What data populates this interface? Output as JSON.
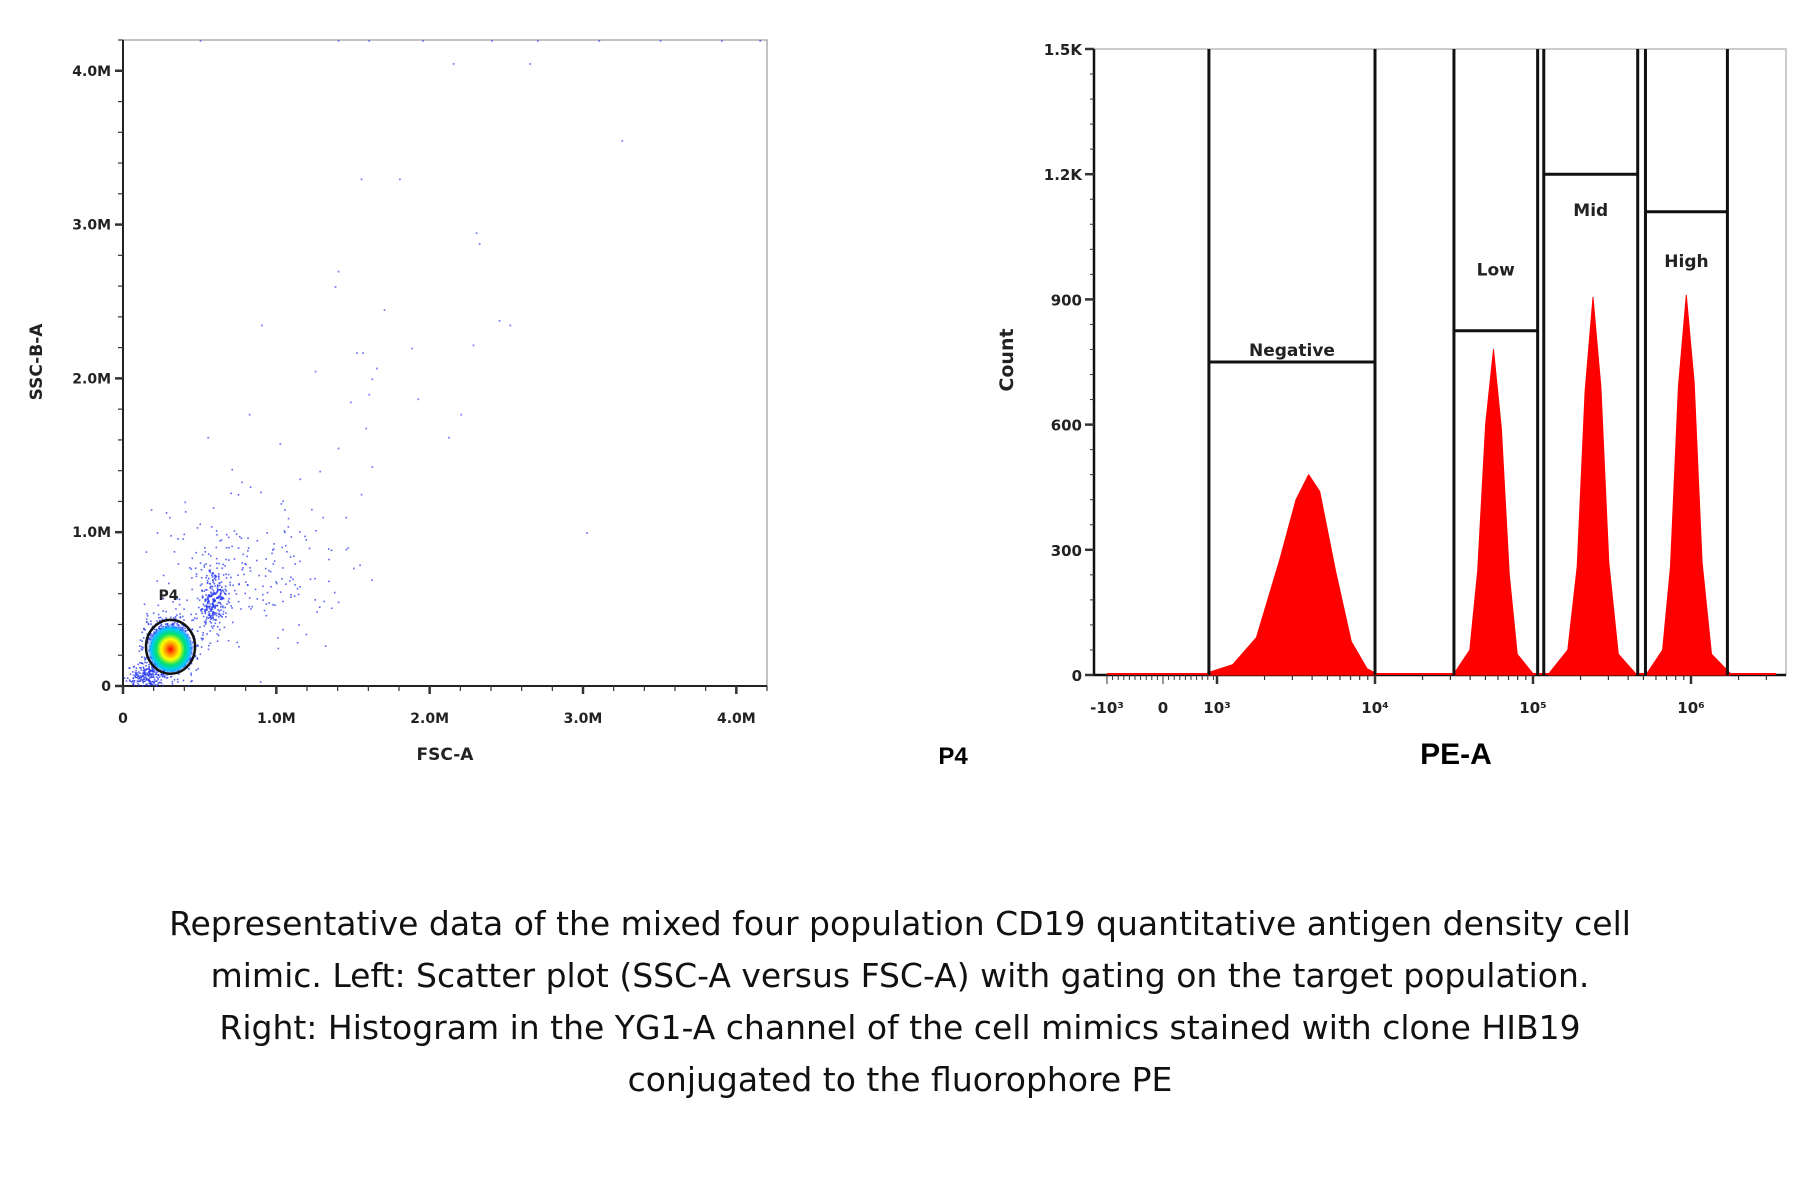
{
  "chart_data": [
    {
      "type": "scatter",
      "xlabel": "FSC-A",
      "ylabel": "SSC-B-A",
      "xlim": [
        0,
        4200000
      ],
      "ylim": [
        0,
        4200000
      ],
      "x_ticks": [
        {
          "value": 0,
          "label": "0"
        },
        {
          "value": 1000000,
          "label": "1.0M"
        },
        {
          "value": 2000000,
          "label": "2.0M"
        },
        {
          "value": 3000000,
          "label": "3.0M"
        },
        {
          "value": 4000000,
          "label": "4.0M"
        }
      ],
      "y_ticks": [
        {
          "value": 0,
          "label": "0"
        },
        {
          "value": 1000000,
          "label": "1.0M"
        },
        {
          "value": 2000000,
          "label": "2.0M"
        },
        {
          "value": 3000000,
          "label": "3.0M"
        },
        {
          "value": 4000000,
          "label": "4.0M"
        }
      ],
      "grid": false,
      "point_color": "#2233ee",
      "density_colors": [
        "#0000ff",
        "#00c8ff",
        "#00e060",
        "#ffff00",
        "#ff0000"
      ],
      "clusters": [
        {
          "center": [
            300000,
            260000
          ],
          "spread": [
            80000,
            95000
          ],
          "count": 900
        },
        {
          "center": [
            580000,
            560000
          ],
          "spread": [
            40000,
            100000
          ],
          "count": 260
        },
        {
          "center": [
            800000,
            760000
          ],
          "spread": [
            280000,
            230000
          ],
          "count": 220
        },
        {
          "center": [
            150000,
            70000
          ],
          "spread": [
            60000,
            40000
          ],
          "count": 200
        }
      ],
      "outliers": [
        [
          1550000,
          3300000
        ],
        [
          1800000,
          3300000
        ],
        [
          3250000,
          3550000
        ],
        [
          2300000,
          2950000
        ],
        [
          2320000,
          2880000
        ],
        [
          1400000,
          2700000
        ],
        [
          1380000,
          2600000
        ],
        [
          1700000,
          2450000
        ],
        [
          2450000,
          2380000
        ],
        [
          2520000,
          2350000
        ],
        [
          900000,
          2350000
        ],
        [
          2280000,
          2220000
        ],
        [
          1520000,
          2170000
        ],
        [
          1560000,
          2170000
        ],
        [
          1880000,
          2200000
        ],
        [
          1250000,
          2050000
        ],
        [
          1650000,
          2070000
        ],
        [
          1620000,
          2000000
        ],
        [
          1600000,
          1900000
        ],
        [
          1480000,
          1850000
        ],
        [
          1920000,
          1870000
        ],
        [
          820000,
          1770000
        ],
        [
          2200000,
          1770000
        ],
        [
          1580000,
          1680000
        ],
        [
          550000,
          1620000
        ],
        [
          1020000,
          1580000
        ],
        [
          2120000,
          1620000
        ],
        [
          1400000,
          1550000
        ],
        [
          1620000,
          1430000
        ],
        [
          770000,
          1330000
        ],
        [
          1150000,
          1350000
        ],
        [
          1280000,
          1400000
        ],
        [
          3020000,
          1000000
        ],
        [
          2650000,
          4050000
        ],
        [
          2150000,
          4050000
        ],
        [
          400000,
          1200000
        ],
        [
          180000,
          1150000
        ],
        [
          300000,
          1100000
        ],
        [
          1500000,
          770000
        ],
        [
          1400000,
          550000
        ],
        [
          1550000,
          1250000
        ],
        [
          1050000,
          1150000
        ],
        [
          1300000,
          1100000
        ],
        [
          1450000,
          1100000
        ],
        [
          500000,
          4200000
        ],
        [
          1400000,
          4200000
        ],
        [
          1600000,
          4200000
        ],
        [
          1950000,
          4200000
        ],
        [
          2400000,
          4200000
        ],
        [
          2700000,
          4200000
        ],
        [
          3100000,
          4200000
        ],
        [
          3500000,
          4200000
        ],
        [
          3900000,
          4200000
        ],
        [
          4150000,
          4200000
        ]
      ],
      "gates": [
        {
          "name": "P4",
          "center": [
            310000,
            255000
          ],
          "radii": [
            160000,
            175000
          ]
        }
      ]
    },
    {
      "type": "area",
      "title": "P4",
      "xlabel": "PE-A",
      "ylabel": "Count",
      "x_scale": "biexponential",
      "xlim": [
        -1500,
        4000000
      ],
      "ylim": [
        0,
        1500
      ],
      "x_ticks": [
        {
          "value": -1000,
          "label": "-10³"
        },
        {
          "value": 0,
          "label": "0"
        },
        {
          "value": 1000,
          "label": "10³"
        },
        {
          "value": 10000,
          "label": "10⁴"
        },
        {
          "value": 100000,
          "label": "10⁵"
        },
        {
          "value": 1000000,
          "label": "10⁶"
        }
      ],
      "y_ticks": [
        {
          "value": 0,
          "label": "0"
        },
        {
          "value": 300,
          "label": "300"
        },
        {
          "value": 600,
          "label": "600"
        },
        {
          "value": 900,
          "label": "900"
        },
        {
          "value": 1200,
          "label": "1.2K"
        },
        {
          "value": 1500,
          "label": "1.5K"
        }
      ],
      "fill_color": "#ff0000",
      "grid": false,
      "series": [
        {
          "x": [
            794,
            1259,
            1778,
            2512,
            3162,
            3802,
            4467,
            5623,
            7079,
            8913,
            10000
          ],
          "y": [
            5,
            25,
            90,
            280,
            420,
            480,
            440,
            250,
            80,
            15,
            5
          ]
        },
        {
          "x": [
            31623,
            39811,
            44668,
            50119,
            56234,
            63096,
            70795,
            79433,
            100000
          ],
          "y": [
            3,
            60,
            250,
            600,
            780,
            590,
            240,
            50,
            3
          ]
        },
        {
          "x": [
            125893,
            165959,
            190546,
            213796,
            239883,
            269153,
            301995,
            346737,
            446684
          ],
          "y": [
            3,
            60,
            260,
            680,
            905,
            690,
            270,
            50,
            3
          ]
        },
        {
          "x": [
            524807,
            660693,
            741310,
            831764,
            933254,
            1047129,
            1174898,
            1348963,
            1778279
          ],
          "y": [
            3,
            60,
            260,
            690,
            910,
            700,
            270,
            50,
            3
          ]
        }
      ],
      "gates": [
        {
          "name": "Negative",
          "x": [
            820,
            10000
          ],
          "level": 750
        },
        {
          "name": "Low",
          "x": [
            31600,
            107000
          ],
          "level": 825
        },
        {
          "name": "Mid",
          "x": [
            117000,
            460000
          ],
          "level": 1200
        },
        {
          "name": "High",
          "x": [
            515000,
            1700000
          ],
          "level": 1110
        }
      ]
    }
  ],
  "caption": {
    "lines": [
      "Representative data of the mixed four population CD19 quantitative antigen density cell",
      "mimic. Left: Scatter plot (SSC-A versus FSC-A) with gating on the target population.",
      "Right: Histogram in the YG1-A channel of the cell mimics stained with clone HIB19",
      "conjugated to the fluorophore PE"
    ]
  }
}
